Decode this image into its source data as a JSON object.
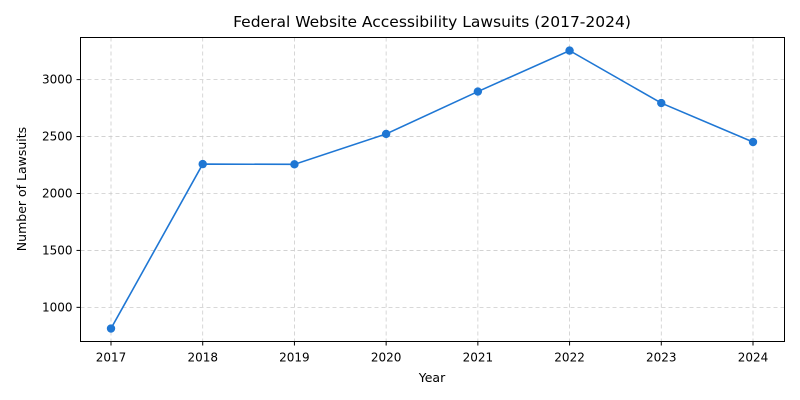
{
  "chart_data": {
    "type": "line",
    "title": "Federal Website Accessibility Lawsuits (2017-2024)",
    "xlabel": "Year",
    "ylabel": "Number of Lawsuits",
    "x": [
      "2017",
      "2018",
      "2019",
      "2020",
      "2021",
      "2022",
      "2023",
      "2024"
    ],
    "series": [
      {
        "name": "Lawsuits",
        "values": [
          814,
          2258,
          2256,
          2523,
          2895,
          3255,
          2794,
          2452
        ],
        "color": "#1f77d4"
      }
    ],
    "yticks": [
      1000,
      1500,
      2000,
      2500,
      3000
    ],
    "ylim": [
      700,
      3370
    ],
    "grid": true,
    "legend": false
  }
}
